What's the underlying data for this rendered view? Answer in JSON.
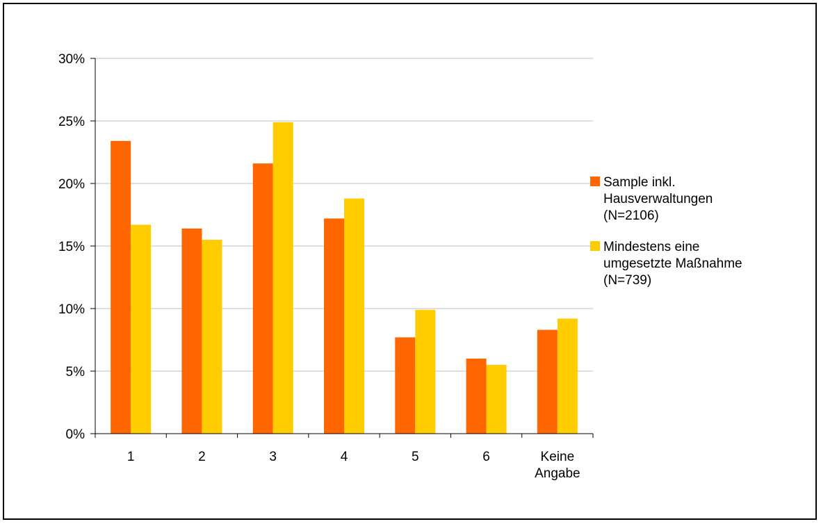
{
  "chart_data": {
    "type": "bar",
    "categories": [
      "1",
      "2",
      "3",
      "4",
      "5",
      "6",
      "Keine Angabe"
    ],
    "category_lines": [
      [
        "1"
      ],
      [
        "2"
      ],
      [
        "3"
      ],
      [
        "4"
      ],
      [
        "5"
      ],
      [
        "6"
      ],
      [
        "Keine",
        "Angabe"
      ]
    ],
    "series": [
      {
        "name": "Sample inkl. Hausverwaltungen (N=2106)",
        "legend_lines": [
          "Sample inkl.",
          "Hausverwaltungen",
          "(N=2106)"
        ],
        "color": "#ff6600",
        "values": [
          23.4,
          16.4,
          21.6,
          17.2,
          7.7,
          6.0,
          8.3
        ]
      },
      {
        "name": "Mindestens eine umgesetzte Maßnahme (N=739)",
        "legend_lines": [
          "Mindestens eine",
          "umgesetzte Maßnahme",
          "(N=739)"
        ],
        "color": "#ffcc00",
        "values": [
          16.7,
          15.5,
          24.9,
          18.8,
          9.9,
          5.5,
          9.2
        ]
      }
    ],
    "yticks": [
      "0%",
      "5%",
      "10%",
      "15%",
      "20%",
      "25%",
      "30%"
    ],
    "ylim": [
      0,
      30
    ],
    "title": "",
    "xlabel": "",
    "ylabel": "",
    "grid": true,
    "legend_position": "right"
  }
}
